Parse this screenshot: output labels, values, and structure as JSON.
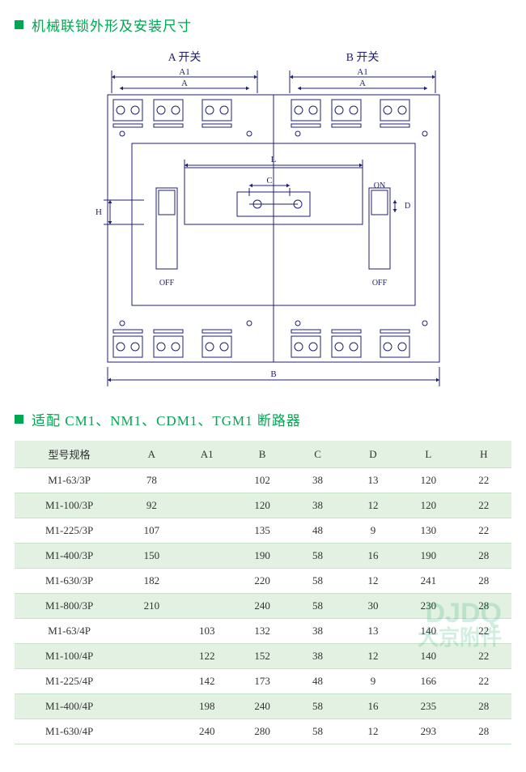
{
  "section1": {
    "title": "机械联锁外形及安装尺寸"
  },
  "section2": {
    "title": "适配 CM1、NM1、CDM1、TGM1 断路器"
  },
  "diagram": {
    "label_switch_a": "A    开关",
    "label_switch_b": "B    开关",
    "dim_A": "A",
    "dim_A1": "A1",
    "dim_B": "B",
    "dim_C": "C",
    "dim_D": "D",
    "dim_L": "L",
    "dim_H": "H",
    "on": "ON",
    "off": "OFF",
    "stroke": "#1f1f6f",
    "stroke_w": 1,
    "label_font": 14,
    "dim_font": 11
  },
  "table": {
    "columns": [
      "型号规格",
      "A",
      "A1",
      "B",
      "C",
      "D",
      "L",
      "H"
    ],
    "rows": [
      [
        "M1-63/3P",
        "78",
        "",
        "102",
        "38",
        "13",
        "120",
        "22"
      ],
      [
        "M1-100/3P",
        "92",
        "",
        "120",
        "38",
        "12",
        "120",
        "22"
      ],
      [
        "M1-225/3P",
        "107",
        "",
        "135",
        "48",
        "9",
        "130",
        "22"
      ],
      [
        "M1-400/3P",
        "150",
        "",
        "190",
        "58",
        "16",
        "190",
        "28"
      ],
      [
        "M1-630/3P",
        "182",
        "",
        "220",
        "58",
        "12",
        "241",
        "28"
      ],
      [
        "M1-800/3P",
        "210",
        "",
        "240",
        "58",
        "30",
        "230",
        "28"
      ],
      [
        "M1-63/4P",
        "",
        "103",
        "132",
        "38",
        "13",
        "140",
        "22"
      ],
      [
        "M1-100/4P",
        "",
        "122",
        "152",
        "38",
        "12",
        "140",
        "22"
      ],
      [
        "M1-225/4P",
        "",
        "142",
        "173",
        "48",
        "9",
        "166",
        "22"
      ],
      [
        "M1-400/4P",
        "",
        "198",
        "240",
        "58",
        "16",
        "235",
        "28"
      ],
      [
        "M1-630/4P",
        "",
        "240",
        "280",
        "58",
        "12",
        "293",
        "28"
      ]
    ],
    "header_bg": "#e3f1e3",
    "row_alt_bg": "#e3f1e3",
    "border_color": "#c9e3c9",
    "font_size": 13
  },
  "watermark": {
    "en": "DJDQ",
    "cn": "大京附件"
  }
}
